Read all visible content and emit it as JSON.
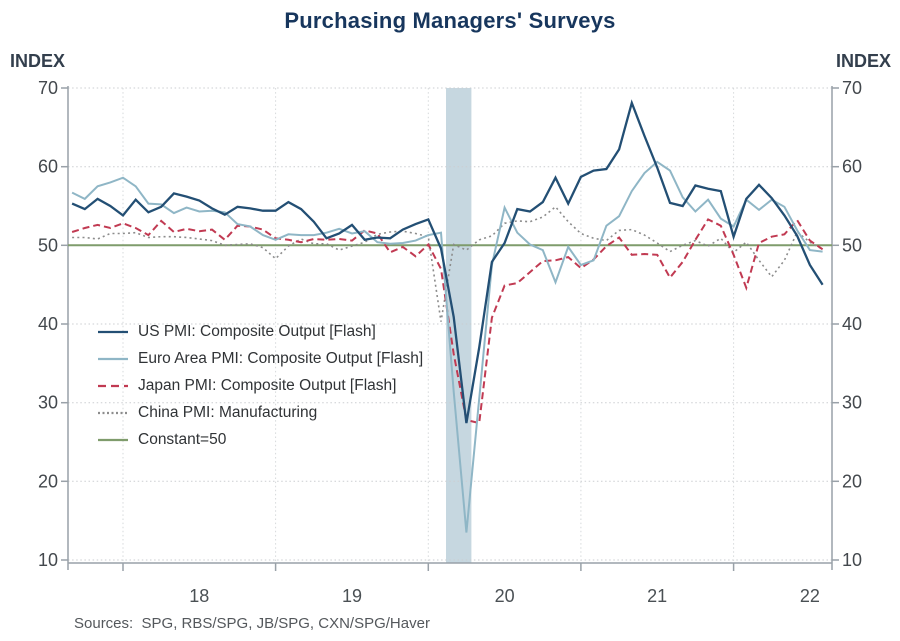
{
  "footer": {
    "sources": "Sources:  SPG, RBS/SPG, JB/SPG, CXN/SPG/Haver"
  },
  "chart_data": {
    "type": "line",
    "title": "Purchasing Managers' Surveys",
    "left_axis_label": "INDEX",
    "right_axis_label": "INDEX",
    "xlabel": "",
    "ylabel": "INDEX",
    "ylim": [
      10,
      70
    ],
    "yticks": [
      10,
      20,
      30,
      40,
      50,
      60,
      70
    ],
    "x_year_ticks": [
      "18",
      "19",
      "20",
      "21",
      "22"
    ],
    "grid": "dotted",
    "legend_position": "inside-left-middle",
    "recession_band": {
      "from": "2020-02",
      "to": "2020-04",
      "color": "#C6D7E0"
    },
    "months": [
      "2017-09",
      "2017-10",
      "2017-11",
      "2017-12",
      "2018-01",
      "2018-02",
      "2018-03",
      "2018-04",
      "2018-05",
      "2018-06",
      "2018-07",
      "2018-08",
      "2018-09",
      "2018-10",
      "2018-11",
      "2018-12",
      "2019-01",
      "2019-02",
      "2019-03",
      "2019-04",
      "2019-05",
      "2019-06",
      "2019-07",
      "2019-08",
      "2019-09",
      "2019-10",
      "2019-11",
      "2019-12",
      "2020-01",
      "2020-02",
      "2020-03",
      "2020-04",
      "2020-05",
      "2020-06",
      "2020-07",
      "2020-08",
      "2020-09",
      "2020-10",
      "2020-11",
      "2020-12",
      "2021-01",
      "2021-02",
      "2021-03",
      "2021-04",
      "2021-05",
      "2021-06",
      "2021-07",
      "2021-08",
      "2021-09",
      "2021-10",
      "2021-11",
      "2021-12",
      "2022-01",
      "2022-02",
      "2022-03",
      "2022-04",
      "2022-05",
      "2022-06",
      "2022-07",
      "2022-08"
    ],
    "series": [
      {
        "name": "US PMI: Composite Output [Flash]",
        "color": "#234F74",
        "style": "solid",
        "width": 2.3,
        "values": [
          55.3,
          54.6,
          55.9,
          55.0,
          53.8,
          55.8,
          54.2,
          54.9,
          56.6,
          56.2,
          55.7,
          54.7,
          53.9,
          54.9,
          54.7,
          54.4,
          54.4,
          55.5,
          54.6,
          53.0,
          50.9,
          51.5,
          52.6,
          50.7,
          51.0,
          50.9,
          52.0,
          52.7,
          53.3,
          49.6,
          40.9,
          27.4,
          37.0,
          47.9,
          50.3,
          54.6,
          54.3,
          55.5,
          58.6,
          55.3,
          58.7,
          59.5,
          59.7,
          62.2,
          68.1,
          63.9,
          59.9,
          55.4,
          55.0,
          57.6,
          57.2,
          56.9,
          51.1,
          55.9,
          57.7,
          56.0,
          53.8,
          51.2,
          47.5,
          45.0
        ]
      },
      {
        "name": "Euro Area PMI: Composite Output [Flash]",
        "color": "#8FB6C6",
        "style": "solid",
        "width": 2.0,
        "values": [
          56.7,
          55.9,
          57.5,
          58.0,
          58.6,
          57.5,
          55.3,
          55.2,
          54.1,
          54.8,
          54.3,
          54.4,
          54.2,
          52.7,
          52.4,
          51.3,
          50.7,
          51.4,
          51.3,
          51.3,
          51.6,
          52.1,
          51.5,
          51.8,
          50.4,
          50.2,
          50.3,
          50.6,
          51.3,
          51.6,
          31.4,
          13.5,
          30.5,
          47.5,
          54.8,
          51.6,
          50.1,
          49.4,
          45.3,
          49.8,
          47.5,
          48.1,
          52.5,
          53.7,
          56.9,
          59.2,
          60.6,
          59.5,
          56.1,
          54.3,
          55.8,
          53.4,
          52.4,
          55.8,
          54.5,
          55.8,
          54.9,
          51.9,
          49.4,
          49.2
        ]
      },
      {
        "name": "Japan PMI: Composite Output [Flash]",
        "color": "#C13A52",
        "style": "dashed",
        "width": 2.0,
        "values": [
          51.7,
          52.2,
          52.6,
          52.2,
          52.8,
          52.2,
          51.3,
          53.1,
          51.7,
          52.1,
          51.8,
          52.0,
          50.7,
          52.5,
          52.4,
          52.0,
          50.9,
          50.7,
          50.4,
          50.8,
          50.7,
          50.8,
          50.6,
          51.9,
          51.5,
          49.1,
          49.8,
          48.6,
          50.1,
          47.0,
          36.2,
          27.8,
          27.4,
          40.8,
          44.9,
          45.2,
          46.6,
          48.0,
          48.1,
          48.5,
          47.1,
          48.2,
          49.9,
          51.0,
          48.8,
          48.9,
          48.8,
          45.9,
          47.9,
          50.7,
          53.3,
          52.5,
          48.8,
          44.6,
          50.3,
          51.1,
          51.4,
          53.2,
          50.6,
          49.5
        ]
      },
      {
        "name": "China PMI: Manufacturing",
        "color": "#8C8C8C",
        "style": "dotted",
        "width": 1.6,
        "values": [
          51.0,
          51.0,
          50.8,
          51.5,
          51.5,
          51.6,
          51.0,
          51.1,
          51.1,
          51.0,
          50.8,
          50.6,
          50.0,
          50.1,
          50.2,
          49.7,
          48.3,
          49.9,
          50.8,
          50.2,
          50.2,
          49.4,
          49.9,
          50.4,
          51.4,
          51.7,
          51.8,
          51.5,
          51.1,
          40.3,
          50.1,
          49.4,
          50.7,
          51.2,
          52.8,
          53.1,
          53.0,
          53.6,
          54.9,
          53.0,
          51.5,
          50.9,
          50.6,
          51.9,
          52.0,
          51.3,
          50.3,
          49.2,
          50.0,
          50.6,
          49.9,
          50.9,
          49.1,
          50.4,
          48.1,
          46.0,
          48.1,
          51.7,
          50.4,
          49.5
        ]
      },
      {
        "name": "Constant=50",
        "color": "#7F9C6C",
        "style": "solid",
        "width": 2.0,
        "constant": 50
      }
    ]
  }
}
